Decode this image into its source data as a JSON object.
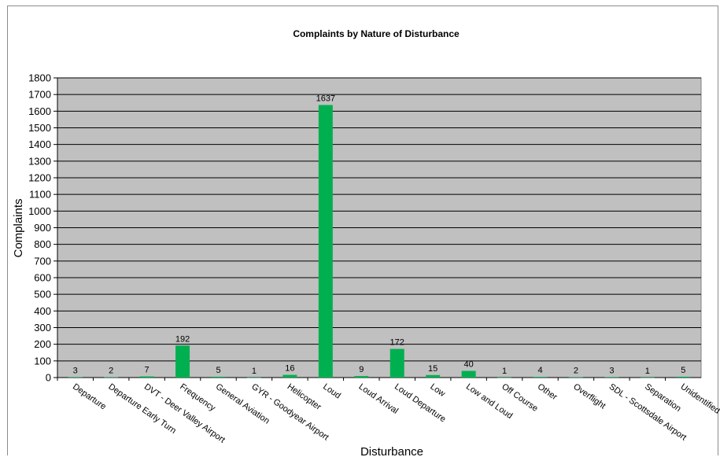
{
  "chart_data": {
    "type": "bar",
    "title": "Complaints by  Nature of Disturbance",
    "xlabel": "Disturbance",
    "ylabel": "Complaints",
    "ylim": [
      0,
      1800
    ],
    "ytick_step": 100,
    "grid": true,
    "legend": "none",
    "colors": {
      "bar": "#00b050",
      "plot_bg": "#c0c0c0",
      "grid": "#000000"
    },
    "categories": [
      "Departure",
      "Departure Early Turn",
      "DVT - Deer Valley Airport",
      "Frequency",
      "General Aviation",
      "GYR - Goodyear Airport",
      "Helicopter",
      "Loud",
      "Loud Arrival",
      "Loud Departure",
      "Low",
      "Low and Loud",
      "Off Course",
      "Other",
      "Overflight",
      "SDL - Scottsdale Airport",
      "Separation",
      "Unidentified"
    ],
    "series": [
      {
        "values": [
          3,
          2,
          7,
          192,
          5,
          1,
          16,
          1637,
          9,
          172,
          15,
          40,
          1,
          4,
          2,
          3,
          1,
          5
        ]
      }
    ]
  }
}
